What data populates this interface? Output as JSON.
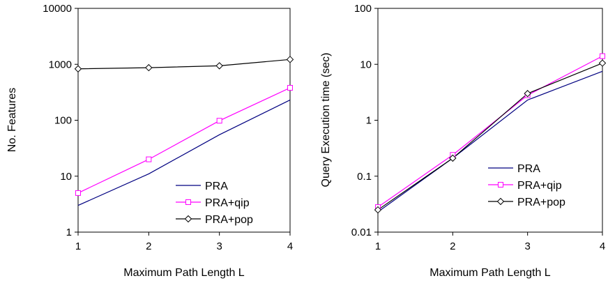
{
  "chart_data": [
    {
      "type": "line",
      "title": "",
      "xlabel": "Maximum Path Length L",
      "ylabel": "No. Features",
      "yscale": "log",
      "xlim": [
        1,
        4
      ],
      "ylim": [
        1,
        10000
      ],
      "grid": false,
      "legend_position": "bottom-right",
      "x": [
        1,
        2,
        3,
        4
      ],
      "xticks": [
        "1",
        "2",
        "3",
        "4"
      ],
      "yticks": [
        "1",
        "10",
        "100",
        "1000",
        "10000"
      ],
      "series": [
        {
          "name": "PRA",
          "color": "#000080",
          "marker": "none",
          "values": [
            3,
            11,
            55,
            230
          ]
        },
        {
          "name": "PRA+qip",
          "color": "#ff00ff",
          "marker": "square",
          "values": [
            5,
            20,
            98,
            380
          ]
        },
        {
          "name": "PRA+pop",
          "color": "#000000",
          "marker": "diamond",
          "values": [
            830,
            870,
            940,
            1220
          ]
        }
      ]
    },
    {
      "type": "line",
      "title": "",
      "xlabel": "Maximum Path Length L",
      "ylabel": "Query Execution time (sec)",
      "yscale": "log",
      "xlim": [
        1,
        4
      ],
      "ylim": [
        0.01,
        100
      ],
      "grid": false,
      "legend_position": "bottom-right",
      "x": [
        1,
        2,
        3,
        4
      ],
      "xticks": [
        "1",
        "2",
        "3",
        "4"
      ],
      "yticks": [
        "0.01",
        "0.1",
        "1",
        "10",
        "100"
      ],
      "series": [
        {
          "name": "PRA",
          "color": "#000080",
          "marker": "none",
          "values": [
            0.023,
            0.21,
            2.3,
            7.5
          ]
        },
        {
          "name": "PRA+qip",
          "color": "#ff00ff",
          "marker": "square",
          "values": [
            0.028,
            0.24,
            2.8,
            14
          ]
        },
        {
          "name": "PRA+pop",
          "color": "#000000",
          "marker": "diamond",
          "values": [
            0.025,
            0.21,
            3.0,
            10.5
          ]
        }
      ]
    }
  ]
}
